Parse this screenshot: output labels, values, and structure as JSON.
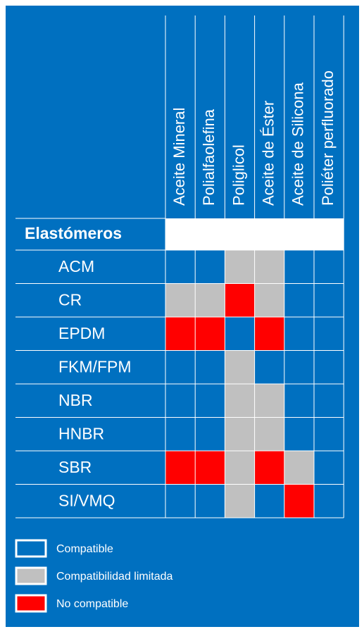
{
  "table": {
    "corner_label": "Elastómeros",
    "columns": [
      "Aceite Mineral",
      "Polialfaolefina",
      "Poliglicol",
      "Aceite de Éster",
      "Aceite de Silicona",
      "Poliéter perfluorado"
    ],
    "rows": [
      {
        "name": "ACM",
        "cells": [
          "Compatible",
          "Compatible",
          "Compatibilidad limitada",
          "Compatibilidad limitada",
          "Compatible",
          "Compatible"
        ]
      },
      {
        "name": "CR",
        "cells": [
          "Compatibilidad limitada",
          "Compatibilidad limitada",
          "No compatible",
          "Compatibilidad limitada",
          "Compatible",
          "Compatible"
        ]
      },
      {
        "name": "EPDM",
        "cells": [
          "No compatible",
          "No compatible",
          "Compatible",
          "No compatible",
          "Compatible",
          "Compatible"
        ]
      },
      {
        "name": "FKM/FPM",
        "cells": [
          "Compatible",
          "Compatible",
          "Compatibilidad limitada",
          "Compatible",
          "Compatible",
          "Compatible"
        ]
      },
      {
        "name": "NBR",
        "cells": [
          "Compatible",
          "Compatible",
          "Compatibilidad limitada",
          "Compatibilidad limitada",
          "Compatible",
          "Compatible"
        ]
      },
      {
        "name": "HNBR",
        "cells": [
          "Compatible",
          "Compatible",
          "Compatibilidad limitada",
          "Compatibilidad limitada",
          "Compatible",
          "Compatible"
        ]
      },
      {
        "name": "SBR",
        "cells": [
          "No compatible",
          "No compatible",
          "Compatibilidad limitada",
          "No compatible",
          "Compatibilidad limitada",
          "Compatible"
        ]
      },
      {
        "name": "SI/VMQ",
        "cells": [
          "Compatible",
          "Compatible",
          "Compatibilidad limitada",
          "Compatible",
          "No compatible",
          "Compatible"
        ]
      }
    ],
    "legend": [
      {
        "label": "Compatible",
        "color": "#0070c0"
      },
      {
        "label": "Compatibilidad limitada",
        "color": "#c0c0c0"
      },
      {
        "label": "No compatible",
        "color": "#ff0000"
      }
    ]
  }
}
